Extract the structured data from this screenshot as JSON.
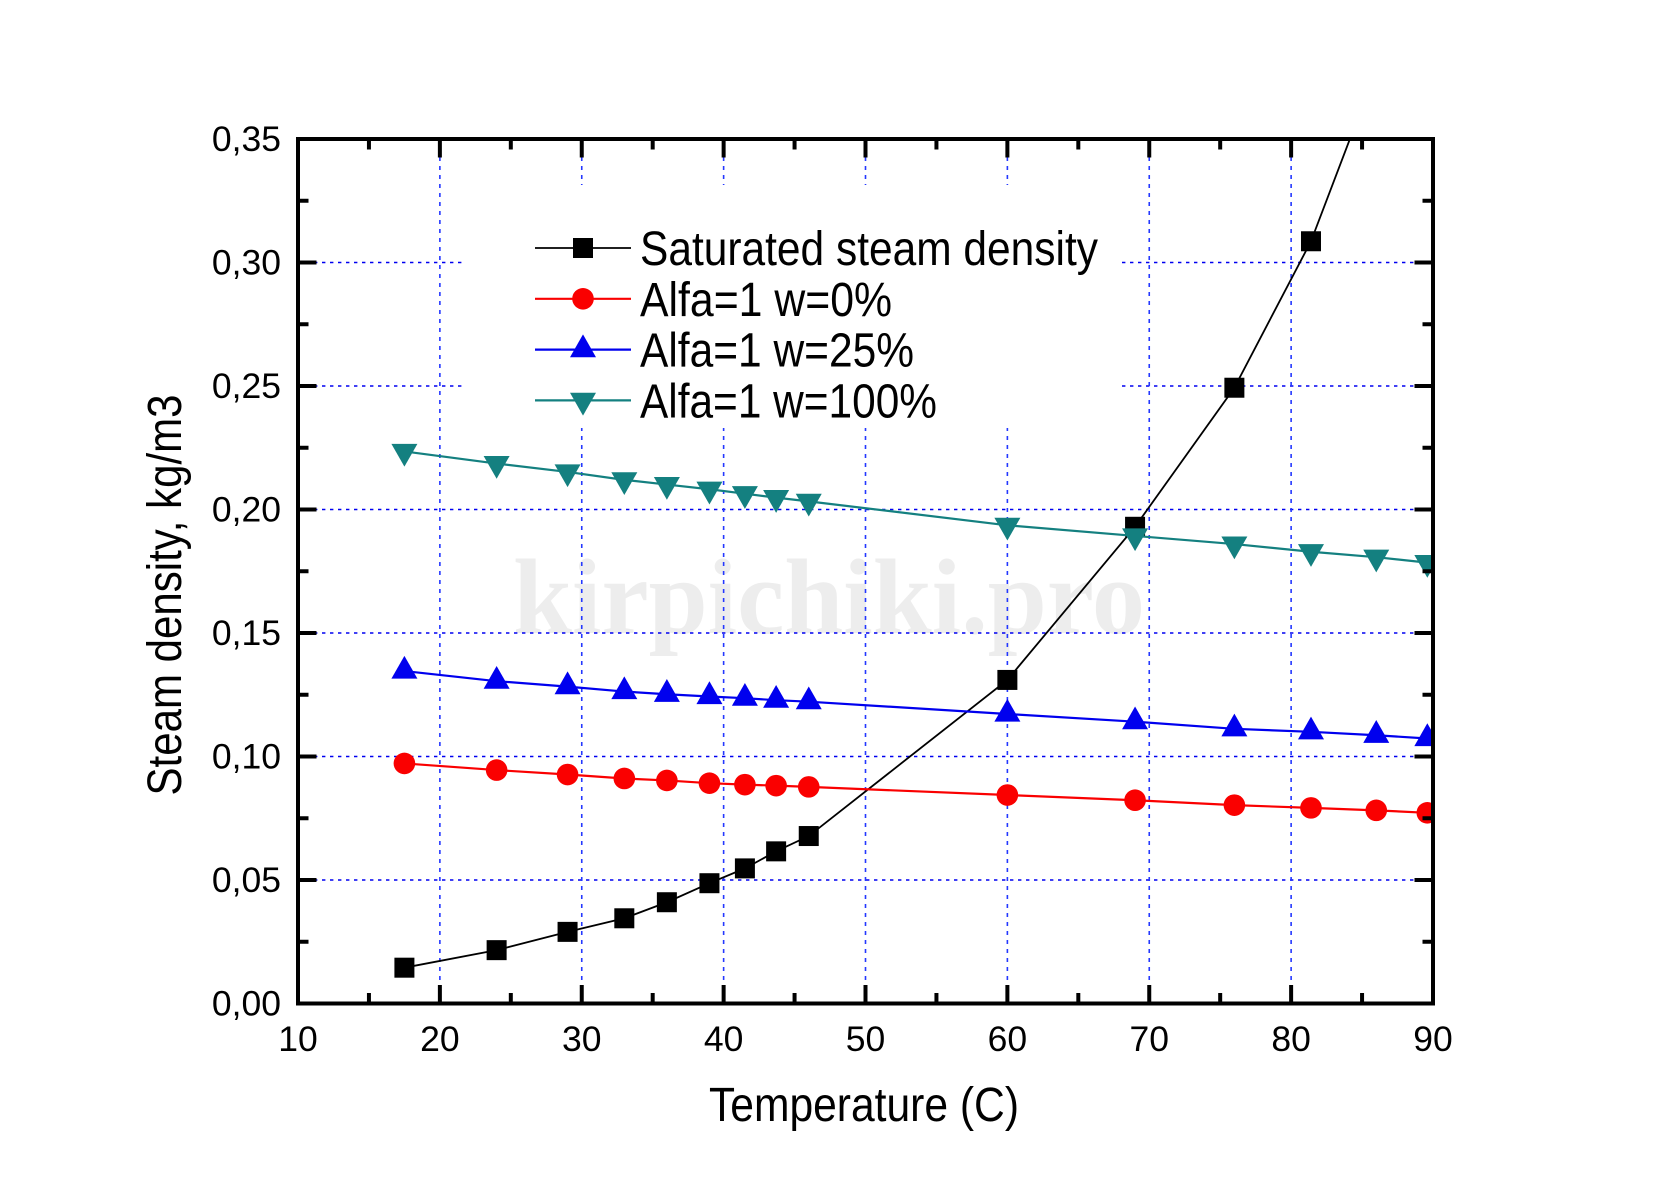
{
  "figure": {
    "background": "#ffffff",
    "watermark": {
      "text": "kirpichiki.pro",
      "color": "#ededed"
    }
  },
  "chart_data": {
    "type": "line",
    "title": "",
    "xlabel": "Temperature (C)",
    "ylabel": "Steam density, kg/m3",
    "xlim": [
      10,
      90
    ],
    "ylim": [
      0,
      0.35
    ],
    "grid": true,
    "legend_position": "upper-left-inside",
    "axis_color": "#000000",
    "grid_color_horizontal": "#0000f0",
    "grid_color_vertical": "#2438ff",
    "x_ticks": {
      "major": [
        10,
        20,
        30,
        40,
        50,
        60,
        70,
        80,
        90
      ],
      "labels": [
        "10",
        "20",
        "30",
        "40",
        "50",
        "60",
        "70",
        "80",
        "90"
      ],
      "minor": [
        15,
        25,
        35,
        45,
        55,
        65,
        75,
        85
      ]
    },
    "y_ticks": {
      "major": [
        0,
        0.05,
        0.1,
        0.15,
        0.2,
        0.25,
        0.3,
        0.35
      ],
      "labels": [
        "0,00",
        "0,05",
        "0,10",
        "0,15",
        "0,20",
        "0,25",
        "0,30",
        "0,35"
      ],
      "minor": [
        0.025,
        0.075,
        0.125,
        0.175,
        0.225,
        0.275,
        0.325
      ]
    },
    "series": [
      {
        "name": "Saturated steam density",
        "color": "#000000",
        "marker": "square",
        "line_width": 1.8,
        "x": [
          17.5,
          24,
          29,
          33,
          36,
          39,
          41.5,
          43.7,
          46,
          60,
          69,
          76,
          81.4,
          86
        ],
        "y": [
          0.0145,
          0.0216,
          0.029,
          0.0345,
          0.041,
          0.0487,
          0.0547,
          0.0616,
          0.0678,
          0.131,
          0.193,
          0.2493,
          0.3086,
          0.378
        ]
      },
      {
        "name": "Alfa=1 w=0%",
        "color": "#fa0000",
        "marker": "circle",
        "line_width": 2.2,
        "x": [
          17.5,
          24,
          29,
          33,
          36,
          39,
          41.5,
          43.7,
          46,
          60,
          69,
          76,
          81.4,
          86,
          89.6
        ],
        "y": [
          0.0972,
          0.0945,
          0.0927,
          0.0911,
          0.0903,
          0.0892,
          0.0886,
          0.0882,
          0.0877,
          0.0844,
          0.0823,
          0.0803,
          0.0792,
          0.0782,
          0.0772
        ]
      },
      {
        "name": "Alfa=1 w=25%",
        "color": "#0000ee",
        "marker": "triangle-up",
        "line_width": 2.2,
        "x": [
          17.5,
          24,
          29,
          33,
          36,
          39,
          41.5,
          43.7,
          46,
          60,
          69,
          76,
          81.4,
          86,
          89.6
        ],
        "y": [
          0.1346,
          0.1305,
          0.1283,
          0.1263,
          0.1252,
          0.1243,
          0.1236,
          0.1228,
          0.1222,
          0.1172,
          0.1141,
          0.1112,
          0.11,
          0.1086,
          0.1073
        ]
      },
      {
        "name": "Alfa=1 w=100%",
        "color": "#148080",
        "marker": "triangle-down",
        "line_width": 2.2,
        "x": [
          17.5,
          24,
          29,
          33,
          36,
          39,
          41.5,
          43.7,
          46,
          60,
          69,
          76,
          81.4,
          86,
          89.6
        ],
        "y": [
          0.2235,
          0.2186,
          0.2152,
          0.212,
          0.2101,
          0.2082,
          0.2064,
          0.2048,
          0.2033,
          0.1936,
          0.1893,
          0.186,
          0.1829,
          0.1807,
          0.1785
        ]
      }
    ]
  }
}
